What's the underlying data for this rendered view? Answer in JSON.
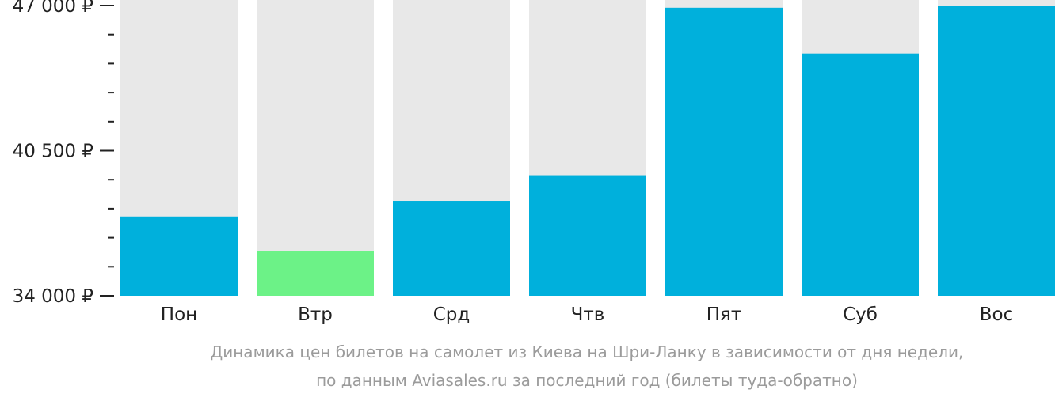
{
  "chart_data": {
    "type": "bar",
    "categories": [
      "Пон",
      "Втр",
      "Срд",
      "Чтв",
      "Пят",
      "Суб",
      "Вос"
    ],
    "values": [
      37550,
      36000,
      38250,
      39400,
      46900,
      44850,
      47000
    ],
    "ylim": [
      34000,
      47000
    ],
    "yticks": [
      {
        "value": 34000,
        "label": "34 000 ₽"
      },
      {
        "value": 40500,
        "label": "40 500 ₽"
      },
      {
        "value": 47000,
        "label": "47 000 ₽"
      }
    ],
    "minor_tick_step": 1300,
    "grid": false,
    "legend": "none",
    "highlight_index": 1,
    "colors": {
      "bar": "#00b0dc",
      "highlight": "#6cf287",
      "track": "#e8e8e8",
      "axis": "#222222",
      "tick_label": "#222222",
      "category_label": "#222222",
      "caption": "#9b9b9b"
    }
  },
  "caption": {
    "line1": "Динамика цен билетов на самолет из Киева на Шри-Ланку в зависимости от дня недели,",
    "line2": "по данным Aviasales.ru за последний год (билеты туда-обратно)"
  }
}
